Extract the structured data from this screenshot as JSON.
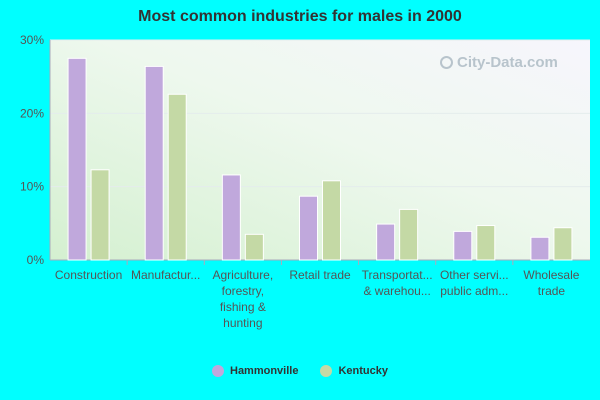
{
  "chart_data": {
    "type": "bar",
    "title": "Most common industries for males in 2000",
    "categories": [
      [
        "Construction"
      ],
      [
        "Manufactur..."
      ],
      [
        "Agriculture,",
        "forestry,",
        "fishing &",
        "hunting"
      ],
      [
        "Retail trade"
      ],
      [
        "Transportat...",
        "& warehou..."
      ],
      [
        "Other servi...",
        "public adm..."
      ],
      [
        "Wholesale",
        "trade"
      ]
    ],
    "series": [
      {
        "name": "Hammonville",
        "color": "#c0a8dc",
        "values": [
          27.5,
          26.4,
          11.6,
          8.7,
          4.9,
          3.9,
          3.1
        ]
      },
      {
        "name": "Kentucky",
        "color": "#c4d9a5",
        "values": [
          12.3,
          22.6,
          3.5,
          10.8,
          6.9,
          4.7,
          4.4
        ]
      }
    ],
    "ylim": [
      0,
      30
    ],
    "yticks": [
      "0%",
      "10%",
      "20%",
      "30%"
    ],
    "ytick_values": [
      0,
      10,
      20,
      30
    ],
    "grid": true,
    "legend_position": "bottom"
  },
  "watermark": "City-Data.com"
}
